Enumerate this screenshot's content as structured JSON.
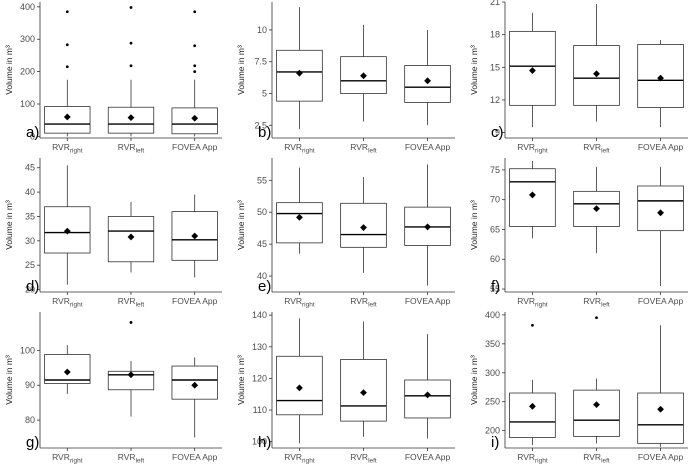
{
  "chart_data": [
    {
      "letter": "a)",
      "type": "box",
      "ylabel": "Volume in m³",
      "categories": [
        "RVRright",
        "RVRleft",
        "FOVEA App"
      ],
      "ylim": [
        -5,
        415
      ],
      "yticks": [
        0,
        100,
        200,
        300,
        400
      ],
      "boxes": [
        {
          "q1": 10,
          "median": 38,
          "q3": 92,
          "lo": 0,
          "hi": 175,
          "mean": 60,
          "outliers": [
            215,
            283,
            385
          ]
        },
        {
          "q1": 10,
          "median": 38,
          "q3": 90,
          "lo": 0,
          "hi": 175,
          "mean": 58,
          "outliers": [
            218,
            288,
            398
          ]
        },
        {
          "q1": 8,
          "median": 38,
          "q3": 88,
          "lo": 0,
          "hi": 175,
          "mean": 56,
          "outliers": [
            200,
            218,
            280,
            385
          ]
        }
      ]
    },
    {
      "letter": "b)",
      "type": "box",
      "ylabel": "Volume in m³",
      "categories": [
        "RVRright",
        "RVRleft",
        "FOVEA App"
      ],
      "ylim": [
        1.5,
        12.2
      ],
      "yticks": [
        2.5,
        5.0,
        7.5,
        10.0
      ],
      "boxes": [
        {
          "q1": 4.4,
          "median": 6.7,
          "q3": 8.4,
          "lo": 2.2,
          "hi": 11.8,
          "mean": 6.6,
          "outliers": []
        },
        {
          "q1": 5.0,
          "median": 6.0,
          "q3": 7.9,
          "lo": 2.8,
          "hi": 10.4,
          "mean": 6.4,
          "outliers": []
        },
        {
          "q1": 4.3,
          "median": 5.5,
          "q3": 7.2,
          "lo": 2.5,
          "hi": 10.0,
          "mean": 6.0,
          "outliers": []
        }
      ]
    },
    {
      "letter": "c)",
      "type": "box",
      "ylabel": "Volume in m³",
      "categories": [
        "RVRright",
        "RVRleft",
        "FOVEA App"
      ],
      "ylim": [
        8.5,
        21
      ],
      "yticks": [
        9,
        12,
        15,
        18,
        21
      ],
      "boxes": [
        {
          "q1": 11.5,
          "median": 15.1,
          "q3": 18.3,
          "lo": 9.5,
          "hi": 20.0,
          "mean": 14.7,
          "outliers": []
        },
        {
          "q1": 11.5,
          "median": 14.0,
          "q3": 17.0,
          "lo": 10.0,
          "hi": 20.8,
          "mean": 14.4,
          "outliers": []
        },
        {
          "q1": 11.3,
          "median": 13.8,
          "q3": 17.1,
          "lo": 9.5,
          "hi": 17.5,
          "mean": 14.0,
          "outliers": []
        }
      ]
    },
    {
      "letter": "d)",
      "type": "box",
      "ylabel": "Volume in m³",
      "categories": [
        "RVRright",
        "RVRleft",
        "FOVEA App"
      ],
      "ylim": [
        19.5,
        47
      ],
      "yticks": [
        20,
        25,
        30,
        35,
        40,
        45
      ],
      "boxes": [
        {
          "q1": 27.5,
          "median": 31.7,
          "q3": 37.0,
          "lo": 21.0,
          "hi": 45.5,
          "mean": 32.0,
          "outliers": []
        },
        {
          "q1": 25.7,
          "median": 32.0,
          "q3": 35.0,
          "lo": 23.5,
          "hi": 38.0,
          "mean": 30.8,
          "outliers": []
        },
        {
          "q1": 26.0,
          "median": 30.2,
          "q3": 36.0,
          "lo": 22.5,
          "hi": 39.5,
          "mean": 31.0,
          "outliers": []
        }
      ]
    },
    {
      "letter": "e)",
      "type": "box",
      "ylabel": "Volume in m³",
      "categories": [
        "RVRright",
        "RVRleft",
        "FOVEA App"
      ],
      "ylim": [
        37.5,
        58.5
      ],
      "yticks": [
        40,
        45,
        50,
        55
      ],
      "boxes": [
        {
          "q1": 45.2,
          "median": 49.8,
          "q3": 51.5,
          "lo": 43.5,
          "hi": 57.0,
          "mean": 49.2,
          "outliers": []
        },
        {
          "q1": 44.5,
          "median": 46.5,
          "q3": 51.4,
          "lo": 40.5,
          "hi": 55.5,
          "mean": 47.6,
          "outliers": []
        },
        {
          "q1": 44.8,
          "median": 47.7,
          "q3": 50.8,
          "lo": 38.5,
          "hi": 57.5,
          "mean": 47.7,
          "outliers": []
        }
      ]
    },
    {
      "letter": "f)",
      "type": "box",
      "ylabel": "Volume in m³",
      "categories": [
        "RVRright",
        "RVRleft",
        "FOVEA App"
      ],
      "ylim": [
        54.5,
        77
      ],
      "yticks": [
        55,
        60,
        65,
        70,
        75
      ],
      "boxes": [
        {
          "q1": 65.5,
          "median": 73.0,
          "q3": 75.2,
          "lo": 63.5,
          "hi": 76.5,
          "mean": 70.8,
          "outliers": []
        },
        {
          "q1": 65.5,
          "median": 69.3,
          "q3": 71.4,
          "lo": 61.0,
          "hi": 75.5,
          "mean": 68.5,
          "outliers": []
        },
        {
          "q1": 64.8,
          "median": 69.8,
          "q3": 72.3,
          "lo": 55.5,
          "hi": 75.5,
          "mean": 67.8,
          "outliers": []
        }
      ]
    },
    {
      "letter": "g)",
      "type": "box",
      "ylabel": "Volume in m³",
      "categories": [
        "RVRright",
        "RVRleft",
        "FOVEA App"
      ],
      "ylim": [
        72,
        111
      ],
      "yticks": [
        80,
        90,
        100
      ],
      "boxes": [
        {
          "q1": 90.5,
          "median": 91.5,
          "q3": 98.8,
          "lo": 87.5,
          "hi": 101.5,
          "mean": 93.8,
          "outliers": []
        },
        {
          "q1": 88.7,
          "median": 93.0,
          "q3": 94.0,
          "lo": 81.0,
          "hi": 97.0,
          "mean": 93.0,
          "outliers": [
            108.0
          ]
        },
        {
          "q1": 86.0,
          "median": 91.5,
          "q3": 95.5,
          "lo": 75.0,
          "hi": 98.0,
          "mean": 90.0,
          "outliers": []
        }
      ]
    },
    {
      "letter": "h)",
      "type": "box",
      "ylabel": "Volume in m³",
      "categories": [
        "RVRright",
        "RVRleft",
        "FOVEA App"
      ],
      "ylim": [
        98,
        141
      ],
      "yticks": [
        100,
        110,
        120,
        130,
        140
      ],
      "boxes": [
        {
          "q1": 108.5,
          "median": 113.0,
          "q3": 127.0,
          "lo": 99.5,
          "hi": 139.0,
          "mean": 117.0,
          "outliers": []
        },
        {
          "q1": 106.5,
          "median": 111.3,
          "q3": 126.0,
          "lo": 101.5,
          "hi": 138.0,
          "mean": 115.5,
          "outliers": []
        },
        {
          "q1": 107.5,
          "median": 114.5,
          "q3": 119.5,
          "lo": 101.0,
          "hi": 134.0,
          "mean": 114.8,
          "outliers": []
        }
      ]
    },
    {
      "letter": "i)",
      "type": "box",
      "ylabel": "Volume in m³",
      "categories": [
        "RVRright",
        "RVRleft",
        "FOVEA App"
      ],
      "ylim": [
        170,
        405
      ],
      "yticks": [
        200,
        250,
        300,
        350,
        400
      ],
      "boxes": [
        {
          "q1": 188,
          "median": 215,
          "q3": 265,
          "lo": 175,
          "hi": 288,
          "mean": 242,
          "outliers": [
            382
          ]
        },
        {
          "q1": 190,
          "median": 218,
          "q3": 270,
          "lo": 178,
          "hi": 290,
          "mean": 245,
          "outliers": [
            395
          ]
        },
        {
          "q1": 178,
          "median": 210,
          "q3": 265,
          "lo": 172,
          "hi": 382,
          "mean": 237,
          "outliers": []
        }
      ]
    }
  ],
  "x_label_parts": [
    {
      "main": "RVR",
      "sub": "right"
    },
    {
      "main": "RVR",
      "sub": "left"
    },
    {
      "main": "FOVEA App",
      "sub": ""
    }
  ],
  "colors": {
    "box_stroke": "#333333",
    "box_fill": "#ffffff",
    "axis": "#333333",
    "text": "#4d4d4d"
  }
}
